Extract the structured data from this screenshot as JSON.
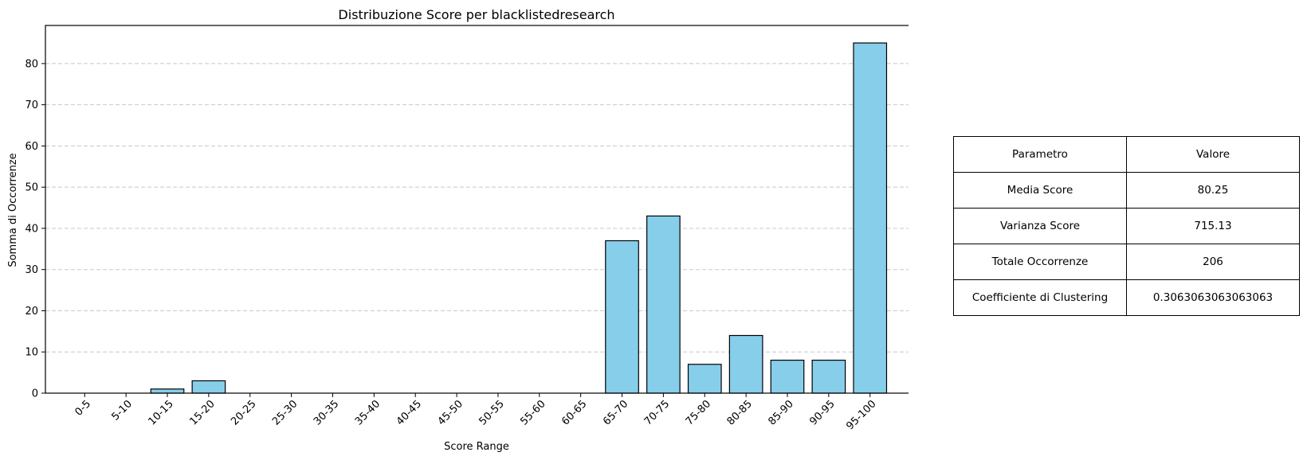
{
  "chart_data": {
    "type": "bar",
    "title": "Distribuzione Score per blacklistedresearch",
    "xlabel": "Score Range",
    "ylabel": "Somma di Occorrenze",
    "categories": [
      "0-5",
      "5-10",
      "10-15",
      "15-20",
      "20-25",
      "25-30",
      "30-35",
      "35-40",
      "40-45",
      "45-50",
      "50-55",
      "55-60",
      "60-65",
      "65-70",
      "70-75",
      "75-80",
      "80-85",
      "85-90",
      "90-95",
      "95-100"
    ],
    "values": [
      0,
      0,
      1,
      3,
      0,
      0,
      0,
      0,
      0,
      0,
      0,
      0,
      0,
      37,
      43,
      7,
      14,
      8,
      8,
      85
    ],
    "ylim": [
      0,
      89.25
    ],
    "yticks": [
      0,
      10,
      20,
      30,
      40,
      50,
      60,
      70,
      80
    ],
    "grid": "y",
    "bar_color": "#87ceeb",
    "edge_color": "#000000",
    "grid_color": "#c8c8c8"
  },
  "table": {
    "header": [
      "Parametro",
      "Valore"
    ],
    "rows": [
      [
        "Media Score",
        "80.25"
      ],
      [
        "Varianza Score",
        "715.13"
      ],
      [
        "Totale Occorrenze",
        "206"
      ],
      [
        "Coefficiente di Clustering",
        "0.3063063063063063"
      ]
    ]
  }
}
